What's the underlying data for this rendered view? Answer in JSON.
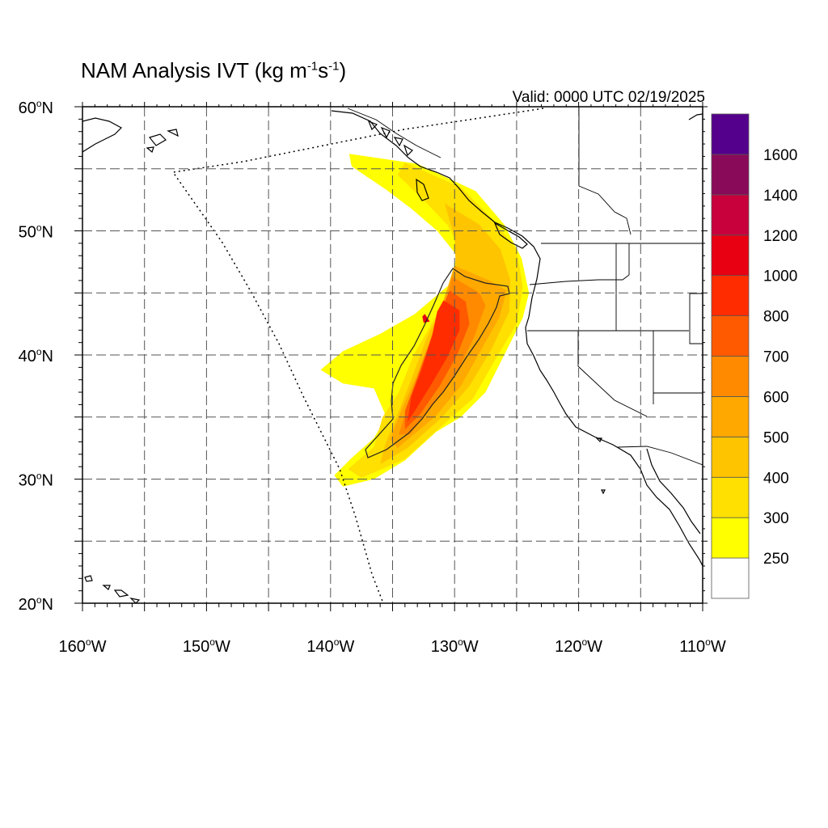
{
  "title": {
    "main": "NAM Analysis IVT (kg m",
    "exp1": "-1",
    "mid": "s",
    "exp2": "-1",
    "close": ")"
  },
  "valid_label": "Valid: 0000 UTC 02/19/2025",
  "map": {
    "lon_range": [
      -160,
      -110
    ],
    "lat_range": [
      20,
      60
    ],
    "grid_lines": "dashed",
    "x_ticks": [
      {
        "num": "160",
        "deg": "o",
        "hem": "W"
      },
      {
        "num": "150",
        "deg": "o",
        "hem": "W"
      },
      {
        "num": "140",
        "deg": "o",
        "hem": "W"
      },
      {
        "num": "130",
        "deg": "o",
        "hem": "W"
      },
      {
        "num": "120",
        "deg": "o",
        "hem": "W"
      },
      {
        "num": "110",
        "deg": "o",
        "hem": "W"
      }
    ],
    "y_ticks": [
      {
        "num": "60",
        "deg": "o",
        "hem": "N"
      },
      {
        "num": "50",
        "deg": "o",
        "hem": "N"
      },
      {
        "num": "40",
        "deg": "o",
        "hem": "N"
      },
      {
        "num": "30",
        "deg": "o",
        "hem": "N"
      },
      {
        "num": "20",
        "deg": "o",
        "hem": "N"
      }
    ],
    "ivt_field": [
      {
        "level": 250,
        "color": "#ffff00",
        "polygon": [
          [
            -138.5,
            56.2
          ],
          [
            -133,
            55.4
          ],
          [
            -128.3,
            53.2
          ],
          [
            -126,
            50.5
          ],
          [
            -124.6,
            47.8
          ],
          [
            -124,
            45
          ],
          [
            -124.5,
            43
          ],
          [
            -126,
            40
          ],
          [
            -127.5,
            37
          ],
          [
            -129.5,
            35
          ],
          [
            -131.5,
            33.8
          ],
          [
            -134,
            31.5
          ],
          [
            -136.5,
            30
          ],
          [
            -139,
            29.4
          ],
          [
            -139.7,
            30.3
          ],
          [
            -138.3,
            31.7
          ],
          [
            -136.5,
            33.3
          ],
          [
            -135.5,
            35
          ],
          [
            -136.5,
            37.3
          ],
          [
            -139,
            37.7
          ],
          [
            -140.8,
            38.8
          ],
          [
            -139,
            40.3
          ],
          [
            -136,
            41.7
          ],
          [
            -133.2,
            43.3
          ],
          [
            -130.5,
            45.6
          ],
          [
            -129.8,
            48
          ],
          [
            -131.4,
            50
          ],
          [
            -133.5,
            51.8
          ],
          [
            -135.5,
            53.3
          ],
          [
            -138.3,
            55.2
          ]
        ]
      },
      {
        "level": 300,
        "color": "#ffe000",
        "polygon": [
          [
            -134,
            55.5
          ],
          [
            -129.5,
            53.5
          ],
          [
            -127,
            51
          ],
          [
            -125,
            48.5
          ],
          [
            -124.5,
            45.5
          ],
          [
            -125,
            42.5
          ],
          [
            -126.8,
            39.5
          ],
          [
            -128.5,
            36.5
          ],
          [
            -131,
            34.3
          ],
          [
            -134,
            31.6
          ],
          [
            -137.5,
            30.1
          ],
          [
            -138.6,
            30.8
          ],
          [
            -136.5,
            32.6
          ],
          [
            -135.8,
            35
          ],
          [
            -134.5,
            37
          ],
          [
            -133.3,
            40
          ],
          [
            -131.3,
            43.5
          ],
          [
            -130.2,
            46
          ],
          [
            -129.4,
            48.3
          ],
          [
            -130.6,
            50.5
          ],
          [
            -132.6,
            52.6
          ],
          [
            -134.6,
            54.5
          ]
        ]
      },
      {
        "level": 400,
        "color": "#ffc400",
        "polygon": [
          [
            -130.8,
            52.2
          ],
          [
            -128,
            50.5
          ],
          [
            -126.3,
            48.5
          ],
          [
            -125.5,
            46
          ],
          [
            -125.6,
            43.5
          ],
          [
            -127,
            40.5
          ],
          [
            -128.8,
            37.5
          ],
          [
            -131,
            35
          ],
          [
            -133.8,
            32.5
          ],
          [
            -136,
            31.2
          ],
          [
            -135.6,
            32.8
          ],
          [
            -134.6,
            35.2
          ],
          [
            -133.5,
            38
          ],
          [
            -132.2,
            41.5
          ],
          [
            -130.7,
            44.5
          ],
          [
            -129.9,
            47
          ],
          [
            -130,
            49.5
          ]
        ]
      },
      {
        "level": 500,
        "color": "#ffa800",
        "polygon": [
          [
            -130,
            47.2
          ],
          [
            -127.2,
            46
          ],
          [
            -125.8,
            45.2
          ],
          [
            -126.4,
            43
          ],
          [
            -127.8,
            40.5
          ],
          [
            -129.5,
            37.5
          ],
          [
            -131.6,
            35
          ],
          [
            -134.6,
            32.5
          ],
          [
            -135.2,
            33.2
          ],
          [
            -134.3,
            35.5
          ],
          [
            -133,
            38.5
          ],
          [
            -131.7,
            42
          ],
          [
            -130.8,
            44.7
          ]
        ]
      },
      {
        "level": 600,
        "color": "#ff8a00",
        "polygon": [
          [
            -130.2,
            46.3
          ],
          [
            -128,
            45
          ],
          [
            -127.5,
            44
          ],
          [
            -128.4,
            41.5
          ],
          [
            -129.7,
            38.8
          ],
          [
            -131.4,
            36.4
          ],
          [
            -133.6,
            33.6
          ],
          [
            -134.5,
            33.6
          ],
          [
            -133.8,
            35.8
          ],
          [
            -132.6,
            39
          ],
          [
            -131.4,
            42.2
          ],
          [
            -130.6,
            44.6
          ]
        ]
      },
      {
        "level": 700,
        "color": "#ff5a00",
        "polygon": [
          [
            -130.4,
            45.2
          ],
          [
            -129.1,
            44.3
          ],
          [
            -128.8,
            42.5
          ],
          [
            -129.8,
            40
          ],
          [
            -131.2,
            37.5
          ],
          [
            -132.8,
            35.2
          ],
          [
            -134,
            34
          ],
          [
            -134,
            35.5
          ],
          [
            -133,
            38.2
          ],
          [
            -132,
            41
          ],
          [
            -131.1,
            43.6
          ]
        ]
      },
      {
        "level": 800,
        "color": "#ff2c00",
        "polygon": [
          [
            -130.9,
            44.4
          ],
          [
            -129.6,
            43.6
          ],
          [
            -129.6,
            42
          ],
          [
            -130.6,
            39.8
          ],
          [
            -131.9,
            37.6
          ],
          [
            -133.2,
            35.5
          ],
          [
            -133.8,
            34.6
          ],
          [
            -133.5,
            36.6
          ],
          [
            -132.6,
            39
          ],
          [
            -131.8,
            41.6
          ],
          [
            -131.4,
            43.5
          ]
        ]
      },
      {
        "level": 1000,
        "color": "#e80012",
        "polygon": [
          [
            -132.4,
            43.3
          ],
          [
            -132,
            42.7
          ],
          [
            -132.5,
            42.6
          ],
          [
            -132.6,
            43.1
          ]
        ]
      }
    ],
    "colorbar": [
      {
        "color": "#ffffff",
        "label": ""
      },
      {
        "color": "#ffff00",
        "label": "250"
      },
      {
        "color": "#ffe000",
        "label": "300"
      },
      {
        "color": "#ffc400",
        "label": "400"
      },
      {
        "color": "#ffa800",
        "label": "500"
      },
      {
        "color": "#ff8a00",
        "label": "600"
      },
      {
        "color": "#ff5a00",
        "label": "700"
      },
      {
        "color": "#ff2c00",
        "label": "800"
      },
      {
        "color": "#e80012",
        "label": "1000"
      },
      {
        "color": "#c8003c",
        "label": "1200"
      },
      {
        "color": "#8a0a5a",
        "label": "1400"
      },
      {
        "color": "#55008c",
        "label": "1600"
      }
    ]
  }
}
